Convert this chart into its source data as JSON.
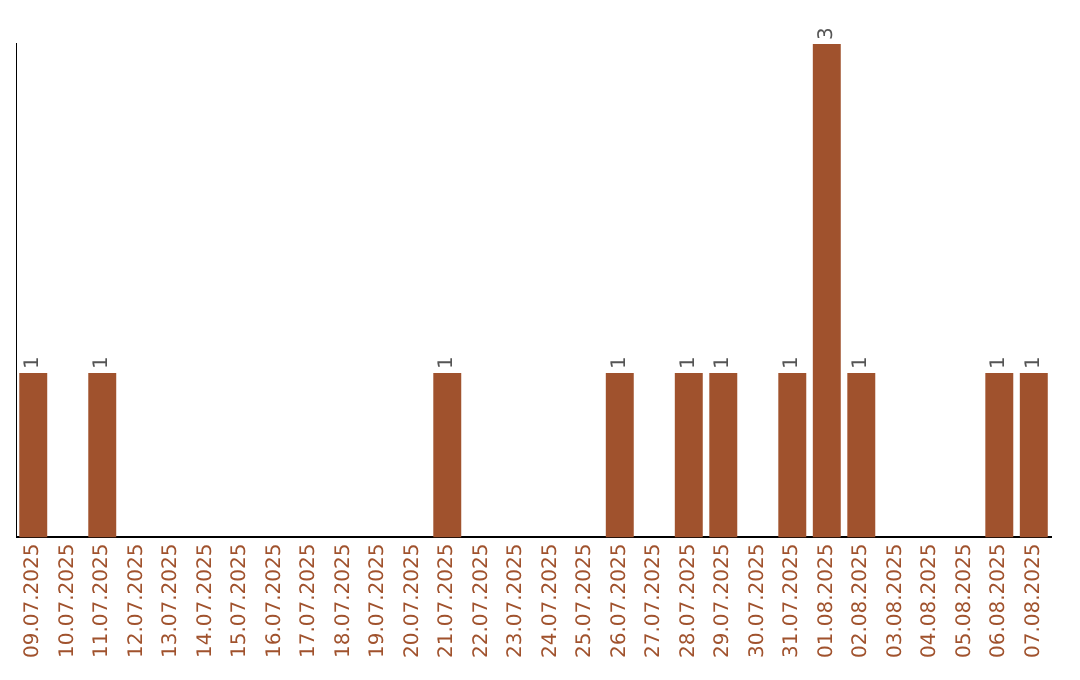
{
  "chart_data": {
    "type": "bar",
    "categories": [
      "09.07.2025",
      "10.07.2025",
      "11.07.2025",
      "12.07.2025",
      "13.07.2025",
      "14.07.2025",
      "15.07.2025",
      "16.07.2025",
      "17.07.2025",
      "18.07.2025",
      "19.07.2025",
      "20.07.2025",
      "21.07.2025",
      "22.07.2025",
      "23.07.2025",
      "24.07.2025",
      "25.07.2025",
      "26.07.2025",
      "27.07.2025",
      "28.07.2025",
      "29.07.2025",
      "30.07.2025",
      "31.07.2025",
      "01.08.2025",
      "02.08.2025",
      "03.08.2025",
      "04.08.2025",
      "05.08.2025",
      "06.08.2025",
      "07.08.2025"
    ],
    "values": [
      1,
      0,
      1,
      0,
      0,
      0,
      0,
      0,
      0,
      0,
      0,
      0,
      1,
      0,
      0,
      0,
      0,
      1,
      0,
      1,
      1,
      0,
      1,
      3,
      1,
      0,
      0,
      0,
      1,
      1
    ],
    "value_labels": [
      "1",
      null,
      "1",
      null,
      null,
      null,
      null,
      null,
      null,
      null,
      null,
      null,
      "1",
      null,
      null,
      null,
      null,
      "1",
      null,
      "1",
      "1",
      null,
      "1",
      "3",
      "1",
      null,
      null,
      null,
      "1",
      "1"
    ],
    "color": "#a0522d",
    "grid": false,
    "legend": false,
    "tick_labels": "x"
  }
}
